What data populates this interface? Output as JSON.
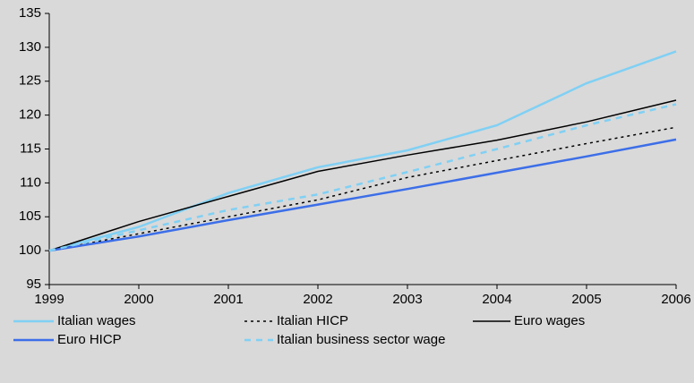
{
  "chart_data": {
    "type": "line",
    "x": [
      1999,
      2000,
      2001,
      2002,
      2003,
      2004,
      2005,
      2006
    ],
    "xlim": [
      1999,
      2006
    ],
    "xticks": [
      1999,
      2000,
      2001,
      2002,
      2003,
      2004,
      2005,
      2006
    ],
    "ylim": [
      95,
      135
    ],
    "yticks": [
      95,
      100,
      105,
      110,
      115,
      120,
      125,
      130,
      135
    ],
    "series": [
      {
        "name": "Italian wages",
        "color": "#80d0f4",
        "dash": "solid",
        "values": [
          100,
          103.5,
          108.5,
          112.3,
          114.8,
          118.5,
          124.7,
          129.4
        ]
      },
      {
        "name": "Italian HICP",
        "color": "#000000",
        "dash": "dotted",
        "values": [
          100,
          102.5,
          105,
          107.5,
          110.8,
          113.3,
          115.8,
          118.2
        ]
      },
      {
        "name": "Euro wages",
        "color": "#000000",
        "dash": "solid",
        "values": [
          100,
          104.3,
          108,
          111.7,
          114.1,
          116.3,
          119,
          122.2
        ]
      },
      {
        "name": "Euro HICP",
        "color": "#3c6ee8",
        "dash": "solid",
        "values": [
          100,
          102.1,
          104.5,
          106.8,
          109.1,
          111.5,
          113.9,
          116.4
        ]
      },
      {
        "name": "Italian business sector wage",
        "color": "#80d0f4",
        "dash": "dashed",
        "values": [
          100,
          103,
          106,
          108.3,
          111.6,
          115,
          118.5,
          121.6
        ]
      }
    ]
  }
}
